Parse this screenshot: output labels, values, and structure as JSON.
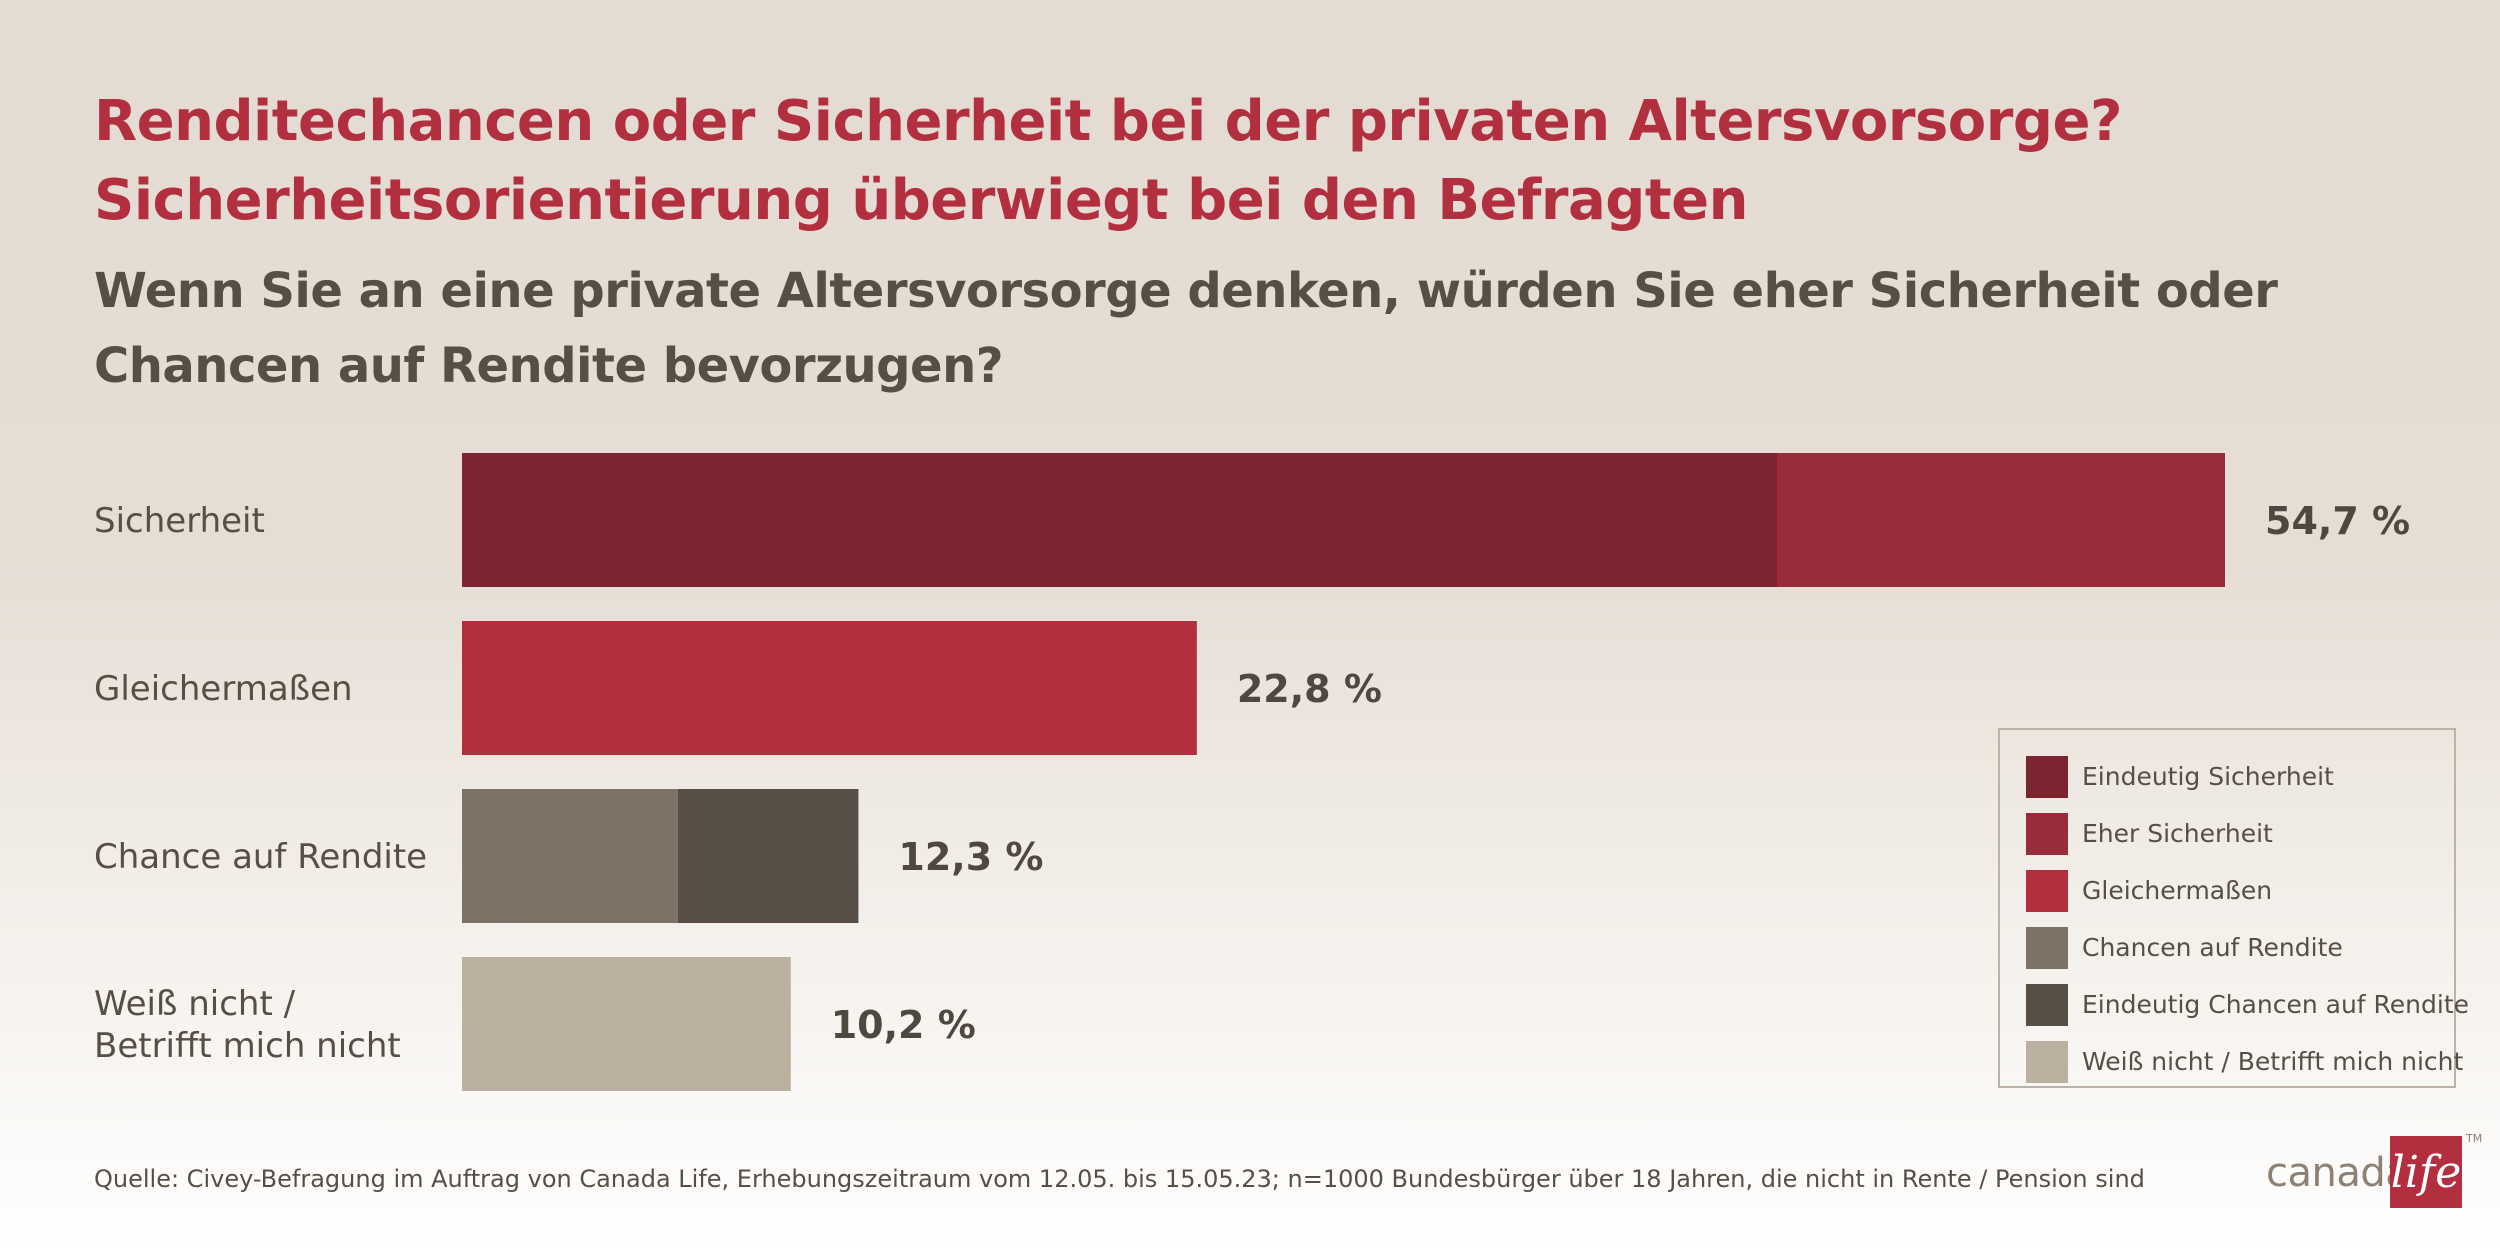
{
  "header": {
    "title_line1": "Renditechancen oder Sicherheit bei der privaten Altersvorsorge?",
    "title_line2": "Sicherheitsorientierung überwiegt bei den Befragten",
    "question": "Wenn Sie an eine private Altersvorsorge denken, würden Sie eher Sicherheit oder Chancen auf Rendite bevorzugen?"
  },
  "chart_data": {
    "type": "bar",
    "orientation": "horizontal",
    "stacked": true,
    "categories": [
      {
        "lines": [
          "Sicherheit"
        ],
        "total_label": "54,7 %",
        "segments": [
          {
            "legend": 0,
            "value": 40.8
          },
          {
            "legend": 1,
            "value": 13.9
          }
        ]
      },
      {
        "lines": [
          "Gleichermaßen"
        ],
        "total_label": "22,8 %",
        "segments": [
          {
            "legend": 2,
            "value": 22.8
          }
        ]
      },
      {
        "lines": [
          "Chance auf Rendite"
        ],
        "total_label": "12,3 %",
        "segments": [
          {
            "legend": 3,
            "value": 6.7
          },
          {
            "legend": 4,
            "value": 5.6
          }
        ]
      },
      {
        "lines": [
          "Weiß nicht /",
          "Betrifft mich nicht"
        ],
        "total_label": "10,2 %",
        "segments": [
          {
            "legend": 5,
            "value": 10.2
          }
        ]
      }
    ],
    "xlim": [
      0,
      54.7
    ],
    "grid": false,
    "legend_position": "bottom-right"
  },
  "legend": {
    "items": [
      {
        "label": "Eindeutig Sicherheit",
        "color": "#7b2531"
      },
      {
        "label": "Eher Sicherheit",
        "color": "#9a2b3a"
      },
      {
        "label": "Gleichermaßen",
        "color": "#b22f3f"
      },
      {
        "label": "Chancen auf Rendite",
        "color": "#7c7366"
      },
      {
        "label": "Eindeutig Chancen auf Rendite",
        "color": "#574f45"
      },
      {
        "label": "Weiß nicht / Betrifft mich nicht",
        "color": "#bcb0a1"
      }
    ]
  },
  "footer": {
    "source": "Quelle: Civey-Befragung im Auftrag von Canada Life, Erhebungszeitraum vom 12.05. bis 15.05.23; n=1000 Bundesbürger über 18 Jahren, die nicht in Rente / Pension sind",
    "logo_word": "canada",
    "logo_mark": "life",
    "logo_tm": "TM"
  }
}
